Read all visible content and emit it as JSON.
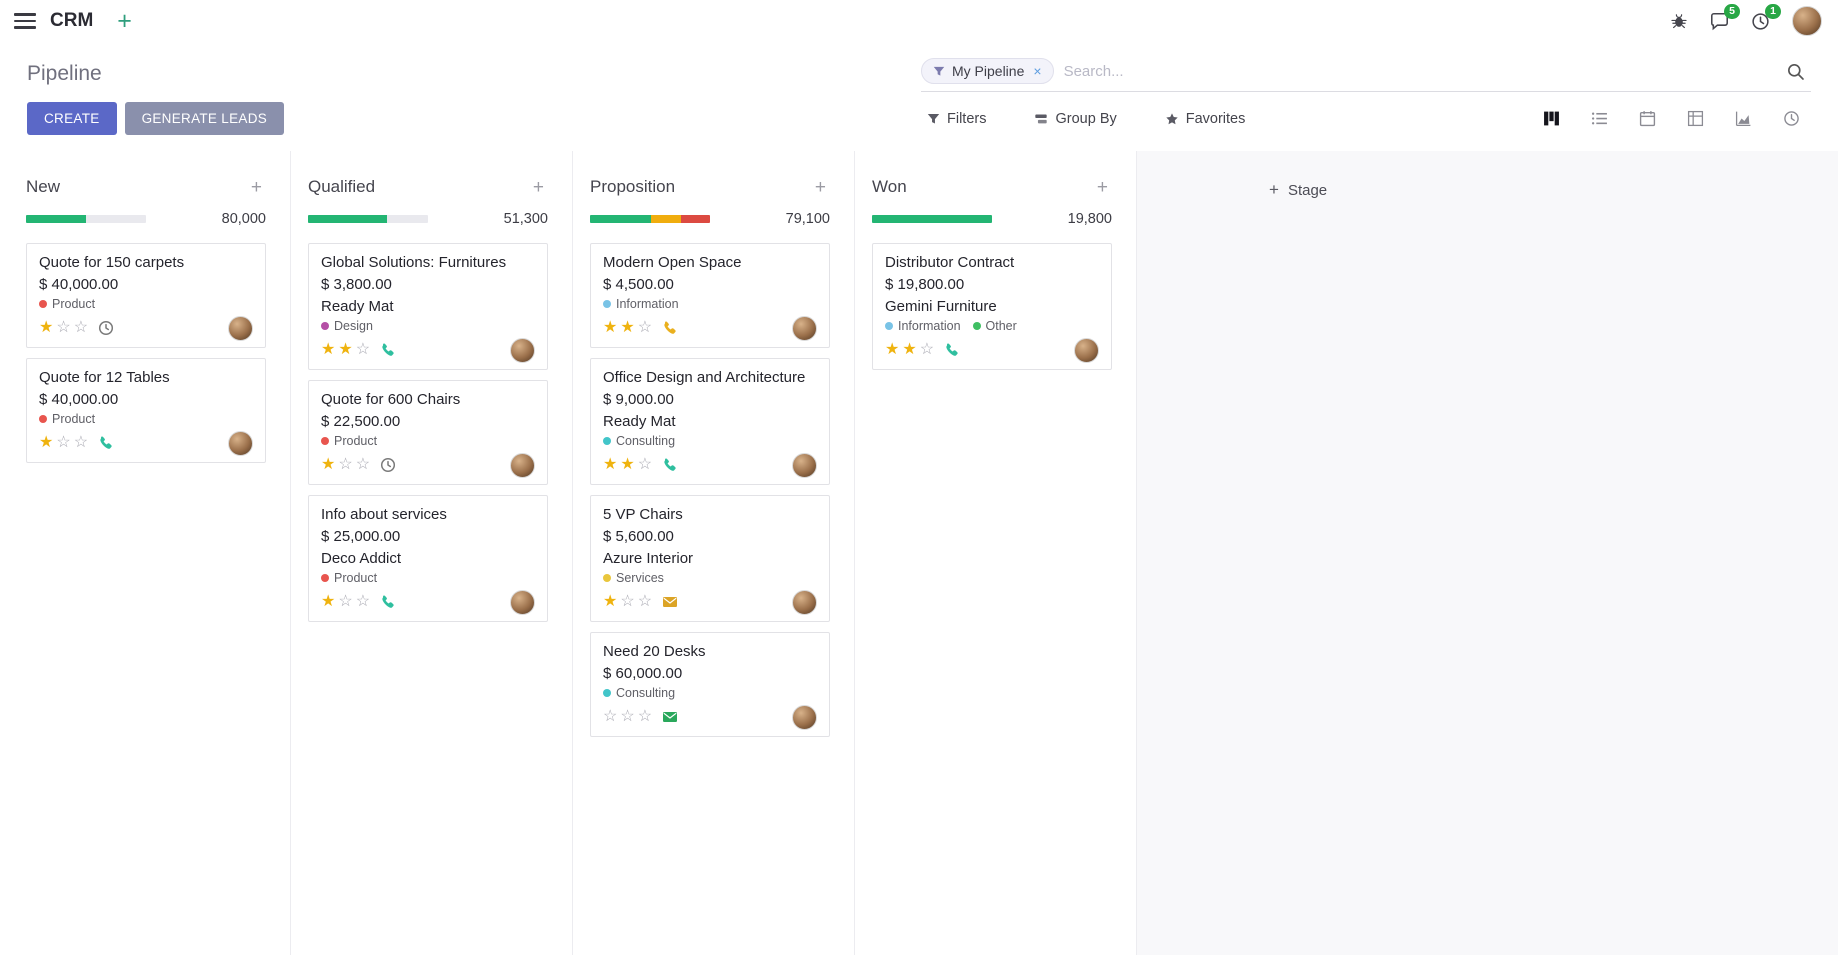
{
  "topbar": {
    "app_name": "CRM",
    "messages_badge": "5",
    "activities_badge": "1"
  },
  "control_panel": {
    "title": "Pipeline",
    "search": {
      "facet_label": "My Pipeline",
      "placeholder": "Search..."
    },
    "primary_actions": {
      "create": "CREATE",
      "generate_leads": "GENERATE LEADS"
    },
    "toolbar": {
      "filters": "Filters",
      "group_by": "Group By",
      "favorites": "Favorites"
    },
    "view_switcher": {
      "active": "kanban",
      "views": [
        "kanban",
        "list",
        "calendar",
        "pivot",
        "graph",
        "activity"
      ]
    }
  },
  "stage_add": {
    "label": "Stage"
  },
  "palette": {
    "primary_button": "#5b68c7",
    "secondary_button": "#8a90ac",
    "badge_green": "#28a745",
    "progress_green": "#23b573",
    "progress_yellow": "#f0ad0e",
    "progress_red": "#dc4a41",
    "star_gold": "#efb30f"
  },
  "columns": [
    {
      "name": "New",
      "total": "80,000",
      "progress": [
        {
          "color": "#23b573",
          "pct": 50
        }
      ],
      "cards": [
        {
          "title": "Quote for 150 carpets",
          "amount": "$ 40,000.00",
          "tags": [
            {
              "label": "Product",
              "color": "#e8554e"
            }
          ],
          "stars": 1,
          "activity": {
            "icon": "clock",
            "color": "#7a7a7a"
          }
        },
        {
          "title": "Quote for 12 Tables",
          "amount": "$ 40,000.00",
          "tags": [
            {
              "label": "Product",
              "color": "#e8554e"
            }
          ],
          "stars": 1,
          "activity": {
            "icon": "phone",
            "color": "#2fbf9f"
          }
        }
      ]
    },
    {
      "name": "Qualified",
      "total": "51,300",
      "progress": [
        {
          "color": "#23b573",
          "pct": 66
        }
      ],
      "cards": [
        {
          "title": "Global Solutions: Furnitures",
          "amount": "$ 3,800.00",
          "customer": "Ready Mat",
          "tags": [
            {
              "label": "Design",
              "color": "#b54fa6"
            }
          ],
          "stars": 2,
          "activity": {
            "icon": "phone",
            "color": "#2fbf9f"
          }
        },
        {
          "title": "Quote for 600 Chairs",
          "amount": "$ 22,500.00",
          "tags": [
            {
              "label": "Product",
              "color": "#e8554e"
            }
          ],
          "stars": 1,
          "activity": {
            "icon": "clock",
            "color": "#7a7a7a"
          }
        },
        {
          "title": "Info about services",
          "amount": "$ 25,000.00",
          "customer": "Deco Addict",
          "tags": [
            {
              "label": "Product",
              "color": "#e8554e"
            }
          ],
          "stars": 1,
          "activity": {
            "icon": "phone",
            "color": "#2fbf9f"
          }
        }
      ]
    },
    {
      "name": "Proposition",
      "total": "79,100",
      "progress": [
        {
          "color": "#23b573",
          "pct": 51
        },
        {
          "color": "#f0ad0e",
          "pct": 25
        },
        {
          "color": "#dc4a41",
          "pct": 24
        }
      ],
      "cards": [
        {
          "title": "Modern Open Space",
          "amount": "$ 4,500.00",
          "tags": [
            {
              "label": "Information",
              "color": "#79c3e6"
            }
          ],
          "stars": 2,
          "activity": {
            "icon": "phone",
            "color": "#eab01e"
          }
        },
        {
          "title": "Office Design and Architecture",
          "amount": "$ 9,000.00",
          "customer": "Ready Mat",
          "tags": [
            {
              "label": "Consulting",
              "color": "#42c5c9"
            }
          ],
          "stars": 2,
          "activity": {
            "icon": "phone",
            "color": "#2fbf9f"
          }
        },
        {
          "title": "5 VP Chairs",
          "amount": "$ 5,600.00",
          "customer": "Azure Interior",
          "tags": [
            {
              "label": "Services",
              "color": "#e9c63c"
            }
          ],
          "stars": 1,
          "activity": {
            "icon": "envelope",
            "color": "#dca426"
          }
        },
        {
          "title": "Need 20 Desks",
          "amount": "$ 60,000.00",
          "tags": [
            {
              "label": "Consulting",
              "color": "#42c5c9"
            }
          ],
          "stars": 0,
          "activity": {
            "icon": "envelope",
            "color": "#2aa85c"
          }
        }
      ]
    },
    {
      "name": "Won",
      "total": "19,800",
      "progress": [
        {
          "color": "#23b573",
          "pct": 100
        }
      ],
      "cards": [
        {
          "title": "Distributor Contract",
          "amount": "$ 19,800.00",
          "customer": "Gemini Furniture",
          "tags": [
            {
              "label": "Information",
              "color": "#79c3e6"
            },
            {
              "label": "Other",
              "color": "#3fbf63"
            }
          ],
          "stars": 2,
          "activity": {
            "icon": "phone",
            "color": "#2fbf9f"
          }
        }
      ]
    }
  ]
}
